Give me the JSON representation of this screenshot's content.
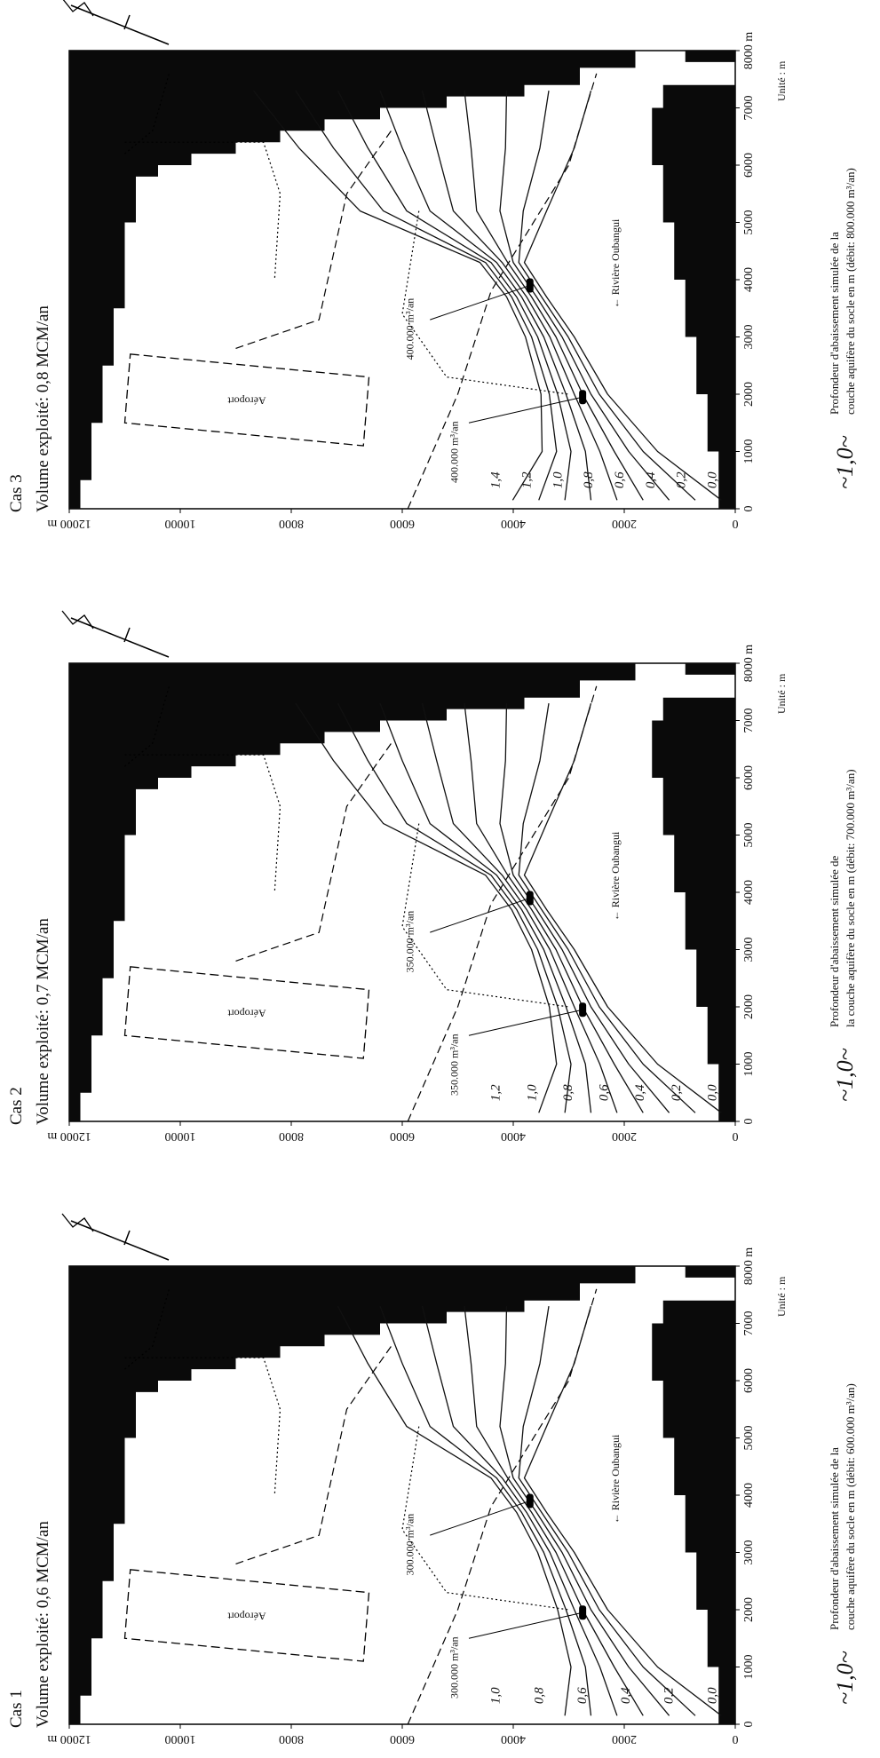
{
  "panels": [
    {
      "case": "Cas 3",
      "title": "Volume exploité: 0,8 MCM/an",
      "xticks": [
        "0",
        "1000",
        "2000",
        "3000",
        "4000",
        "5000",
        "6000",
        "7000",
        "8000 m"
      ],
      "yticks": [
        "0",
        "2000",
        "4000",
        "6000",
        "8000",
        "10000",
        "12000 m"
      ],
      "unit": "Unité : m",
      "airport": "Aéroport",
      "river": "← Rivière Oubangui",
      "well_labels": [
        "400.000 m³/an",
        "400.000 m³/an"
      ],
      "contour_labels": [
        "1,4",
        "1,2",
        "1,0",
        "0,8",
        "0,6",
        "0,4",
        "0,2",
        "0,0"
      ],
      "legend_symbol": "~1,0~",
      "legend_text": [
        "Profondeur d'abaissement simulée de la",
        "couche aquifère du socle en m (débit: 800.000 m³/an)"
      ]
    },
    {
      "case": "Cas 2",
      "title": "Volume exploité: 0,7 MCM/an",
      "xticks": [
        "0",
        "1000",
        "2000",
        "3000",
        "4000",
        "5000",
        "6000",
        "7000",
        "8000 m"
      ],
      "yticks": [
        "0",
        "2000",
        "4000",
        "6000",
        "8000",
        "10000",
        "12000 m"
      ],
      "unit": "Unité : m",
      "airport": "Aéroport",
      "river": "← Rivière Oubangui",
      "well_labels": [
        "350.000 m³/an",
        "350.000 m³/an"
      ],
      "contour_labels": [
        "1,2",
        "1,0",
        "0,8",
        "0,6",
        "0,4",
        "0,2",
        "0,0"
      ],
      "legend_symbol": "~1,0~",
      "legend_text": [
        "Profondeur d'abaissement simulée de",
        "la couche aquifère du socle en m (débit: 700.000 m³/an)"
      ]
    },
    {
      "case": "Cas 1",
      "title": "Volume exploité: 0,6 MCM/an",
      "xticks": [
        "0",
        "1000",
        "2000",
        "3000",
        "4000",
        "5000",
        "6000",
        "7000",
        "8000 m"
      ],
      "yticks": [
        "0",
        "2000",
        "4000",
        "6000",
        "8000",
        "10000",
        "12000 m"
      ],
      "unit": "Unité : m",
      "airport": "Aéroport",
      "river": "← Rivière Oubangui",
      "well_labels": [
        "300.000 m³/an",
        "300.000 m³/an"
      ],
      "contour_labels": [
        "1,0",
        "0,8",
        "0,6",
        "0,4",
        "0,2",
        "0,0"
      ],
      "legend_symbol": "~1,0~",
      "legend_text": [
        "Profondeur d'abaissement simulée de la",
        "couche aquifère du socle en m (débit: 600.000 m³/an)"
      ]
    }
  ]
}
